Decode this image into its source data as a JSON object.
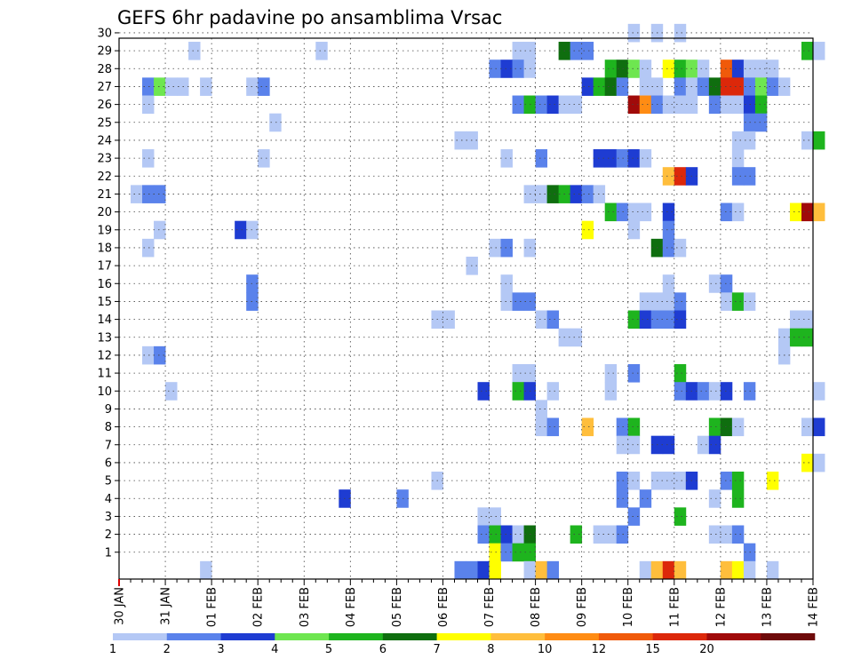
{
  "chart_data": {
    "type": "heatmap",
    "title": "GEFS 6hr padavine po ansamblima Vrsac",
    "xlabel": "",
    "ylabel": "",
    "x_tick_labels": [
      "30 JAN",
      "31 JAN",
      "01 FEB",
      "02 FEB",
      "03 FEB",
      "04 FEB",
      "05 FEB",
      "06 FEB",
      "07 FEB",
      "08 FEB",
      "09 FEB",
      "10 FEB",
      "11 FEB",
      "12 FEB",
      "13 FEB",
      "14 FEB"
    ],
    "x_range_days": [
      0,
      15
    ],
    "steps_per_day": 4,
    "y_tick_labels": [
      "1",
      "2",
      "3",
      "4",
      "5",
      "6",
      "7",
      "8",
      "9",
      "10",
      "11",
      "12",
      "13",
      "14",
      "15",
      "16",
      "17",
      "18",
      "19",
      "20",
      "21",
      "22",
      "23",
      "24",
      "25",
      "26",
      "27",
      "28",
      "29",
      "30"
    ],
    "y_range": [
      0,
      30
    ],
    "grid": true,
    "colorbar": {
      "labels": [
        "1",
        "2",
        "3",
        "4",
        "5",
        "6",
        "7",
        "8",
        "10",
        "12",
        "15",
        "20"
      ],
      "colors": [
        "#b4c8f5",
        "#5a82eb",
        "#1e3cd2",
        "#6ee650",
        "#1eb41e",
        "#0f6e0f",
        "#ffff00",
        "#ffbe3c",
        "#ff8c14",
        "#f05a0a",
        "#dc280a",
        "#a00a0a",
        "#6e0a0a"
      ]
    },
    "cells": [
      {
        "member": 30,
        "steps": [
          44,
          46,
          48
        ],
        "colors": [
          0,
          0,
          0
        ]
      },
      {
        "member": 29,
        "steps": [
          6,
          17,
          34,
          35,
          38,
          39,
          40,
          59,
          60
        ],
        "colors": [
          0,
          0,
          0,
          0,
          5,
          1,
          1,
          4,
          0
        ]
      },
      {
        "member": 28,
        "steps": [
          32,
          33,
          34,
          35,
          42,
          43,
          44,
          45,
          47,
          48,
          49,
          50,
          52,
          53,
          54,
          55,
          56
        ],
        "colors": [
          1,
          2,
          1,
          0,
          4,
          5,
          3,
          0,
          6,
          4,
          3,
          0,
          9,
          2,
          0,
          0,
          0
        ]
      },
      {
        "member": 27,
        "steps": [
          2,
          3,
          4,
          5,
          7,
          11,
          12,
          40,
          41,
          42,
          43,
          45,
          46,
          48,
          49,
          50,
          51,
          52,
          53,
          54,
          55,
          56,
          57
        ],
        "colors": [
          1,
          3,
          0,
          0,
          0,
          0,
          1,
          2,
          4,
          5,
          1,
          0,
          0,
          1,
          0,
          1,
          5,
          10,
          10,
          1,
          3,
          1,
          0
        ]
      },
      {
        "member": 26,
        "steps": [
          2,
          34,
          35,
          36,
          37,
          38,
          39,
          44,
          45,
          46,
          47,
          48,
          49,
          51,
          52,
          53,
          54,
          55
        ],
        "colors": [
          0,
          1,
          4,
          1,
          2,
          0,
          0,
          11,
          8,
          1,
          0,
          0,
          0,
          1,
          0,
          0,
          2,
          4
        ]
      },
      {
        "member": 25,
        "steps": [
          13,
          54,
          55
        ],
        "colors": [
          0,
          1,
          1
        ]
      },
      {
        "member": 24,
        "steps": [
          29,
          30,
          53,
          54,
          59,
          60
        ],
        "colors": [
          0,
          0,
          0,
          0,
          0,
          4
        ]
      },
      {
        "member": 23,
        "steps": [
          2,
          12,
          33,
          36,
          41,
          42,
          43,
          44,
          45,
          53
        ],
        "colors": [
          0,
          0,
          0,
          1,
          2,
          2,
          1,
          2,
          0,
          0
        ]
      },
      {
        "member": 22,
        "steps": [
          47,
          48,
          49,
          53,
          54
        ],
        "colors": [
          7,
          10,
          2,
          1,
          1
        ]
      },
      {
        "member": 21,
        "steps": [
          1,
          2,
          3,
          35,
          36,
          37,
          38,
          39,
          40,
          41
        ],
        "colors": [
          0,
          1,
          1,
          0,
          0,
          5,
          4,
          2,
          1,
          0
        ]
      },
      {
        "member": 20,
        "steps": [
          42,
          43,
          44,
          45,
          47,
          52,
          53,
          58,
          59,
          60
        ],
        "colors": [
          4,
          1,
          0,
          0,
          2,
          1,
          0,
          6,
          11,
          7
        ]
      },
      {
        "member": 19,
        "steps": [
          3,
          10,
          11,
          40,
          44,
          47
        ],
        "colors": [
          0,
          2,
          0,
          6,
          0,
          1
        ]
      },
      {
        "member": 18,
        "steps": [
          2,
          32,
          33,
          35,
          46,
          47,
          48
        ],
        "colors": [
          0,
          0,
          1,
          0,
          5,
          1,
          0
        ]
      },
      {
        "member": 17,
        "steps": [
          30
        ],
        "colors": [
          0
        ]
      },
      {
        "member": 16,
        "steps": [
          11,
          33,
          47,
          51,
          52
        ],
        "colors": [
          1,
          0,
          0,
          0,
          1
        ]
      },
      {
        "member": 15,
        "steps": [
          11,
          33,
          34,
          35,
          45,
          46,
          47,
          48,
          52,
          53,
          54
        ],
        "colors": [
          1,
          0,
          1,
          1,
          0,
          0,
          0,
          1,
          0,
          4,
          0
        ]
      },
      {
        "member": 14,
        "steps": [
          27,
          28,
          36,
          37,
          44,
          45,
          46,
          47,
          48,
          58,
          59
        ],
        "colors": [
          0,
          0,
          0,
          1,
          4,
          2,
          1,
          1,
          2,
          0,
          0
        ]
      },
      {
        "member": 13,
        "steps": [
          38,
          39,
          57,
          58,
          59
        ],
        "colors": [
          0,
          0,
          0,
          4,
          4
        ]
      },
      {
        "member": 12,
        "steps": [
          2,
          3,
          57
        ],
        "colors": [
          0,
          1,
          0
        ]
      },
      {
        "member": 11,
        "steps": [
          34,
          35,
          42,
          44,
          48
        ],
        "colors": [
          0,
          0,
          0,
          1,
          4
        ]
      },
      {
        "member": 10,
        "steps": [
          4,
          31,
          34,
          35,
          37,
          42,
          48,
          49,
          50,
          51,
          52,
          54,
          60
        ],
        "colors": [
          0,
          2,
          4,
          2,
          0,
          0,
          1,
          2,
          1,
          0,
          2,
          1,
          0
        ]
      },
      {
        "member": 9,
        "steps": [
          36
        ],
        "colors": [
          0
        ]
      },
      {
        "member": 8,
        "steps": [
          36,
          37,
          40,
          43,
          44,
          51,
          52,
          53,
          59,
          60
        ],
        "colors": [
          0,
          1,
          7,
          1,
          4,
          4,
          5,
          0,
          0,
          2
        ]
      },
      {
        "member": 7,
        "steps": [
          43,
          44,
          46,
          47,
          50,
          51
        ],
        "colors": [
          0,
          0,
          2,
          2,
          0,
          2
        ]
      },
      {
        "member": 6,
        "steps": [
          59,
          60
        ],
        "colors": [
          6,
          0
        ]
      },
      {
        "member": 5,
        "steps": [
          27,
          43,
          44,
          46,
          47,
          48,
          49,
          52,
          53,
          56
        ],
        "colors": [
          0,
          1,
          0,
          0,
          0,
          0,
          2,
          1,
          4,
          6
        ]
      },
      {
        "member": 4,
        "steps": [
          19,
          24,
          43,
          45,
          51,
          53
        ],
        "colors": [
          2,
          1,
          1,
          1,
          0,
          4
        ]
      },
      {
        "member": 3,
        "steps": [
          31,
          32,
          44,
          48
        ],
        "colors": [
          0,
          0,
          1,
          4
        ]
      },
      {
        "member": 2,
        "steps": [
          31,
          32,
          33,
          34,
          35,
          39,
          41,
          42,
          43,
          51,
          52,
          53
        ],
        "colors": [
          1,
          4,
          2,
          0,
          5,
          4,
          0,
          0,
          1,
          0,
          0,
          1
        ]
      },
      {
        "member": 1,
        "steps": [
          32,
          33,
          34,
          35,
          54
        ],
        "colors": [
          6,
          1,
          4,
          4,
          1
        ]
      },
      {
        "member": 0,
        "steps": [
          7,
          29,
          30,
          31,
          32,
          35,
          36,
          37,
          45,
          46,
          47,
          48,
          52,
          53,
          54,
          56
        ],
        "colors": [
          0,
          1,
          1,
          2,
          6,
          0,
          7,
          1,
          0,
          7,
          10,
          7,
          7,
          6,
          0,
          0
        ]
      }
    ]
  }
}
